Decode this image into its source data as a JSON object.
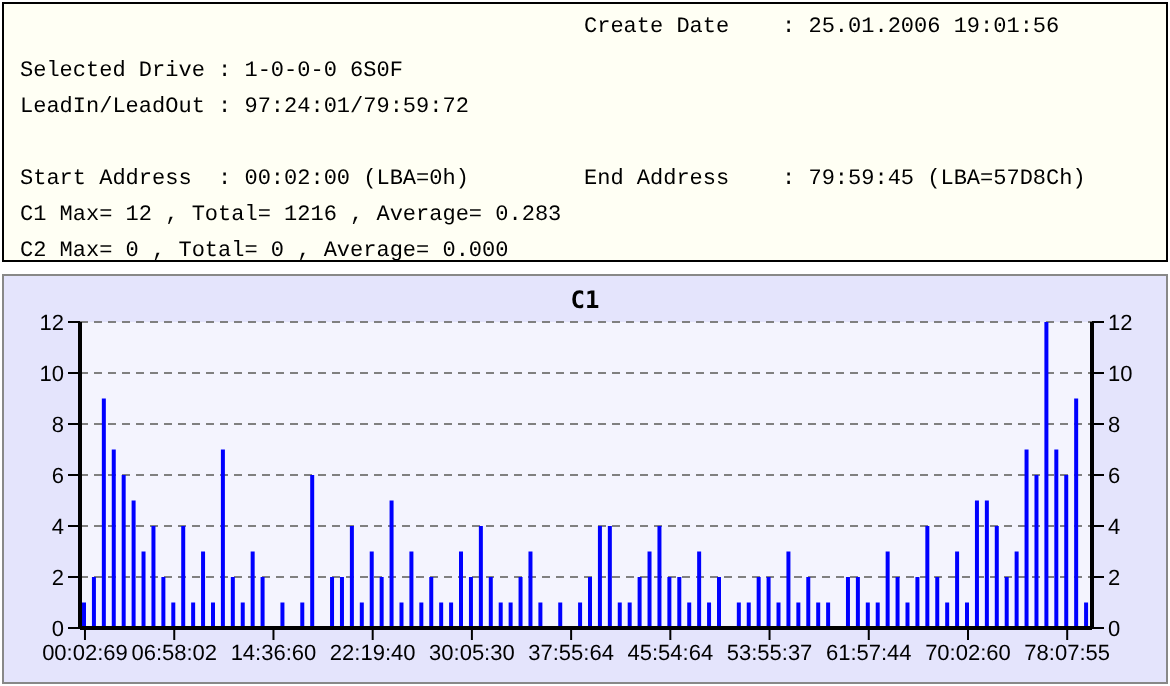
{
  "chart_data": {
    "type": "bar",
    "title": "C1",
    "annotations": [
      "Create Date    : 25.01.2006 19:01:56",
      "Selected Drive : 1-0-0-0 6S0F",
      "LeadIn/LeadOut : 97:24:01/79:59:72",
      "Start Address  : 00:02:00 (LBA=0h)",
      "End Address    : 79:59:45 (LBA=57D8Ch)",
      "C1 Max= 12 , Total= 1216 , Average= 0.283",
      "C2 Max= 0 , Total= 0 , Average= 0.000"
    ],
    "categories": [
      "00:02:69",
      null,
      null,
      null,
      null,
      null,
      null,
      null,
      null,
      "06:58:02",
      null,
      null,
      null,
      null,
      null,
      null,
      null,
      null,
      null,
      "14:36:60",
      null,
      null,
      null,
      null,
      null,
      null,
      null,
      null,
      null,
      "22:19:40",
      null,
      null,
      null,
      null,
      null,
      null,
      null,
      null,
      null,
      "30:05:30",
      null,
      null,
      null,
      null,
      null,
      null,
      null,
      null,
      null,
      "37:55:64",
      null,
      null,
      null,
      null,
      null,
      null,
      null,
      null,
      null,
      "45:54:64",
      null,
      null,
      null,
      null,
      null,
      null,
      null,
      null,
      null,
      "53:55:37",
      null,
      null,
      null,
      null,
      null,
      null,
      null,
      null,
      null,
      "61:57:44",
      null,
      null,
      null,
      null,
      null,
      null,
      null,
      null,
      null,
      "70:02:60",
      null,
      null,
      null,
      null,
      null,
      null,
      null,
      null,
      null,
      "78:07:55",
      null,
      null
    ],
    "values": [
      1,
      2,
      9,
      7,
      6,
      5,
      3,
      4,
      2,
      1,
      4,
      1,
      3,
      1,
      7,
      2,
      1,
      3,
      2,
      0,
      1,
      0,
      1,
      6,
      0,
      2,
      2,
      4,
      1,
      3,
      2,
      5,
      1,
      3,
      1,
      2,
      1,
      1,
      3,
      2,
      4,
      2,
      1,
      1,
      2,
      3,
      1,
      0,
      1,
      0,
      1,
      2,
      4,
      4,
      1,
      1,
      2,
      3,
      4,
      2,
      2,
      1,
      3,
      1,
      2,
      0,
      1,
      1,
      2,
      2,
      1,
      3,
      1,
      2,
      1,
      1,
      0,
      2,
      2,
      1,
      1,
      3,
      2,
      1,
      2,
      4,
      2,
      1,
      3,
      1,
      5,
      5,
      4,
      2,
      3,
      7,
      6,
      12,
      7,
      6,
      9,
      1
    ],
    "color": "#0000ff",
    "ylim": [
      0,
      12
    ],
    "yticks": [
      0,
      2,
      4,
      6,
      8,
      10,
      12
    ],
    "y2lim": [
      0,
      12
    ],
    "y2ticks": [
      0,
      2,
      4,
      6,
      8,
      10,
      12
    ],
    "grid": "y"
  }
}
